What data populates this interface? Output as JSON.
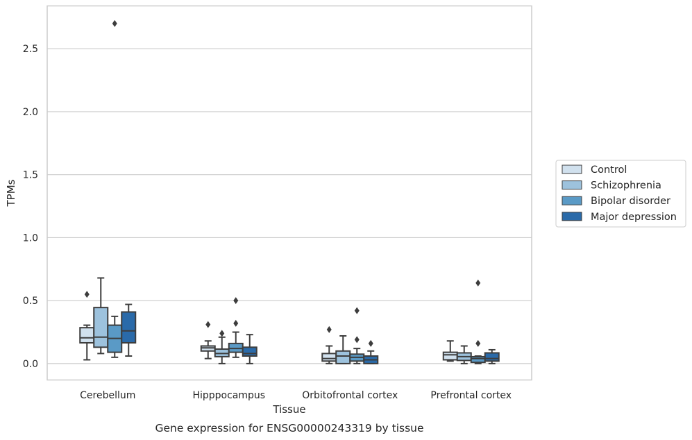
{
  "chart_data": {
    "type": "box",
    "title": "",
    "caption": "Gene expression for ENSG00000243319 by tissue",
    "xlabel": "Tissue",
    "ylabel": "TPMs",
    "ylim": [
      -0.13,
      2.84
    ],
    "yticks": [
      0.0,
      0.5,
      1.0,
      1.5,
      2.0,
      2.5
    ],
    "ytick_labels": [
      "0.0",
      "0.5",
      "1.0",
      "1.5",
      "2.0",
      "2.5"
    ],
    "grid": "horizontal",
    "legend_position": "right",
    "categories": [
      "Cerebellum",
      "Hipppocampus",
      "Orbitofrontal cortex",
      "Prefrontal cortex"
    ],
    "series": [
      {
        "name": "Control",
        "color": "#d1e1ee",
        "boxes": [
          {
            "whisker_low": 0.03,
            "q1": 0.165,
            "median": 0.205,
            "q3": 0.285,
            "whisker_high": 0.305,
            "outliers": [
              0.55
            ]
          },
          {
            "whisker_low": 0.04,
            "q1": 0.1,
            "median": 0.125,
            "q3": 0.14,
            "whisker_high": 0.18,
            "outliers": [
              0.31
            ]
          },
          {
            "whisker_low": 0.0,
            "q1": 0.02,
            "median": 0.04,
            "q3": 0.08,
            "whisker_high": 0.14,
            "outliers": [
              0.27
            ]
          },
          {
            "whisker_low": 0.02,
            "q1": 0.03,
            "median": 0.07,
            "q3": 0.09,
            "whisker_high": 0.18,
            "outliers": []
          }
        ]
      },
      {
        "name": "Schizophrenia",
        "color": "#9dc2dd",
        "boxes": [
          {
            "whisker_low": 0.08,
            "q1": 0.13,
            "median": 0.21,
            "q3": 0.445,
            "whisker_high": 0.68,
            "outliers": []
          },
          {
            "whisker_low": 0.0,
            "q1": 0.055,
            "median": 0.08,
            "q3": 0.115,
            "whisker_high": 0.21,
            "outliers": [
              0.24
            ]
          },
          {
            "whisker_low": 0.0,
            "q1": 0.0,
            "median": 0.06,
            "q3": 0.1,
            "whisker_high": 0.22,
            "outliers": []
          },
          {
            "whisker_low": 0.0,
            "q1": 0.025,
            "median": 0.055,
            "q3": 0.085,
            "whisker_high": 0.14,
            "outliers": []
          }
        ]
      },
      {
        "name": "Bipolar disorder",
        "color": "#5a9ac6",
        "boxes": [
          {
            "whisker_low": 0.05,
            "q1": 0.09,
            "median": 0.2,
            "q3": 0.305,
            "whisker_high": 0.375,
            "outliers": [
              2.7
            ]
          },
          {
            "whisker_low": 0.05,
            "q1": 0.09,
            "median": 0.12,
            "q3": 0.16,
            "whisker_high": 0.25,
            "outliers": [
              0.32,
              0.5
            ]
          },
          {
            "whisker_low": 0.0,
            "q1": 0.02,
            "median": 0.05,
            "q3": 0.075,
            "whisker_high": 0.12,
            "outliers": [
              0.19,
              0.42
            ]
          },
          {
            "whisker_low": 0.0,
            "q1": 0.01,
            "median": 0.04,
            "q3": 0.055,
            "whisker_high": 0.06,
            "outliers": [
              0.16,
              0.64
            ]
          }
        ]
      },
      {
        "name": "Major depression",
        "color": "#2a6aa9",
        "boxes": [
          {
            "whisker_low": 0.06,
            "q1": 0.165,
            "median": 0.26,
            "q3": 0.41,
            "whisker_high": 0.47,
            "outliers": []
          },
          {
            "whisker_low": 0.0,
            "q1": 0.06,
            "median": 0.08,
            "q3": 0.13,
            "whisker_high": 0.23,
            "outliers": []
          },
          {
            "whisker_low": 0.0,
            "q1": 0.0,
            "median": 0.03,
            "q3": 0.06,
            "whisker_high": 0.1,
            "outliers": [
              0.16
            ]
          },
          {
            "whisker_low": 0.0,
            "q1": 0.02,
            "median": 0.04,
            "q3": 0.085,
            "whisker_high": 0.11,
            "outliers": []
          }
        ]
      }
    ]
  }
}
